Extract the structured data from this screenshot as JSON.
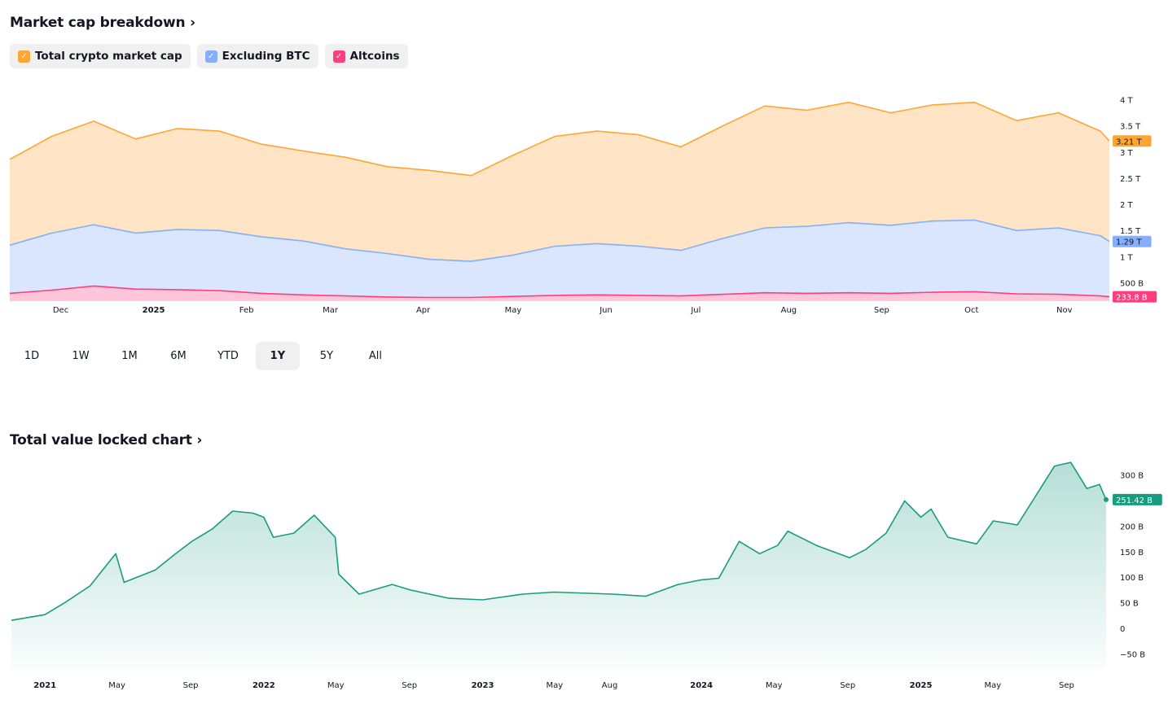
{
  "market": {
    "title": "Market cap breakdown",
    "legend": [
      {
        "label": "Total crypto market cap",
        "color": "#ffa534"
      },
      {
        "label": "Excluding BTC",
        "color": "#85aefc"
      },
      {
        "label": "Altcoins",
        "color": "#ff3d7f"
      }
    ]
  },
  "ranges": {
    "items": [
      "1D",
      "1W",
      "1M",
      "6M",
      "YTD",
      "1Y",
      "5Y",
      "All"
    ],
    "selected": "1Y"
  },
  "tvl": {
    "title": "Total value locked chart"
  },
  "chart_data": [
    {
      "type": "area",
      "title": "Market cap breakdown",
      "unit": "T",
      "ylim": [
        0.15,
        4.35
      ],
      "yticks": [
        {
          "label": "500 B",
          "v": 0.5
        },
        {
          "label": "1 T",
          "v": 1
        },
        {
          "label": "1.5 T",
          "v": 1.5
        },
        {
          "label": "2 T",
          "v": 2
        },
        {
          "label": "2.5 T",
          "v": 2.5
        },
        {
          "label": "3 T",
          "v": 3
        },
        {
          "label": "3.5 T",
          "v": 3.5
        },
        {
          "label": "4 T",
          "v": 4
        }
      ],
      "xlim": [
        "2024-11-14",
        "2025-11-16"
      ],
      "xticks": [
        {
          "label": "Dec",
          "d": "2024-12-01"
        },
        {
          "label": "2025",
          "d": "2025-01-01",
          "bold": true
        },
        {
          "label": "Feb",
          "d": "2025-02-01"
        },
        {
          "label": "Mar",
          "d": "2025-03-01"
        },
        {
          "label": "Apr",
          "d": "2025-04-01"
        },
        {
          "label": "May",
          "d": "2025-05-01"
        },
        {
          "label": "Jun",
          "d": "2025-06-01"
        },
        {
          "label": "Jul",
          "d": "2025-07-01"
        },
        {
          "label": "Aug",
          "d": "2025-08-01"
        },
        {
          "label": "Sep",
          "d": "2025-09-01"
        },
        {
          "label": "Oct",
          "d": "2025-10-01"
        },
        {
          "label": "Nov",
          "d": "2025-11-01"
        }
      ],
      "x": [
        "2024-11-14",
        "2024-11-28",
        "2024-12-12",
        "2024-12-26",
        "2025-01-09",
        "2025-01-23",
        "2025-02-06",
        "2025-02-20",
        "2025-03-06",
        "2025-03-20",
        "2025-04-03",
        "2025-04-17",
        "2025-05-01",
        "2025-05-15",
        "2025-05-29",
        "2025-06-12",
        "2025-06-26",
        "2025-07-10",
        "2025-07-24",
        "2025-08-07",
        "2025-08-21",
        "2025-09-04",
        "2025-09-18",
        "2025-10-02",
        "2025-10-16",
        "2025-10-30",
        "2025-11-13",
        "2025-11-16"
      ],
      "series": [
        {
          "name": "Total crypto market cap",
          "color": "#ffa534",
          "fill": "#ffe5c6",
          "last_label": "3.21 T",
          "values": [
            2.86,
            3.3,
            3.59,
            3.25,
            3.45,
            3.4,
            3.15,
            3.02,
            2.9,
            2.72,
            2.65,
            2.55,
            2.94,
            3.3,
            3.4,
            3.33,
            3.1,
            3.5,
            3.88,
            3.8,
            3.95,
            3.75,
            3.9,
            3.95,
            3.6,
            3.75,
            3.4,
            3.21
          ]
        },
        {
          "name": "Excluding BTC",
          "color": "#85aefc",
          "fill": "#d9e6fd",
          "last_label": "1.29 T",
          "values": [
            1.22,
            1.45,
            1.61,
            1.45,
            1.52,
            1.5,
            1.38,
            1.3,
            1.15,
            1.06,
            0.95,
            0.91,
            1.03,
            1.2,
            1.25,
            1.2,
            1.12,
            1.35,
            1.55,
            1.58,
            1.65,
            1.6,
            1.68,
            1.7,
            1.5,
            1.55,
            1.4,
            1.29
          ]
        },
        {
          "name": "Altcoins",
          "color": "#ff3d7f",
          "fill": "#ffc5d9",
          "last_label": "233.8 B",
          "values": [
            0.3,
            0.36,
            0.44,
            0.38,
            0.37,
            0.35,
            0.3,
            0.27,
            0.25,
            0.23,
            0.22,
            0.22,
            0.24,
            0.26,
            0.27,
            0.26,
            0.25,
            0.28,
            0.31,
            0.3,
            0.31,
            0.3,
            0.32,
            0.33,
            0.29,
            0.28,
            0.25,
            0.234
          ]
        }
      ]
    },
    {
      "type": "area",
      "title": "Total value locked chart",
      "unit": "B",
      "ylim": [
        -79,
        329
      ],
      "yticks": [
        {
          "label": "−50 B",
          "v": -50
        },
        {
          "label": "0",
          "v": 0
        },
        {
          "label": "50 B",
          "v": 50
        },
        {
          "label": "100 B",
          "v": 100
        },
        {
          "label": "150 B",
          "v": 150
        },
        {
          "label": "200 B",
          "v": 200
        },
        {
          "label": "300 B",
          "v": 300
        }
      ],
      "xlim": [
        "2020-11-06",
        "2025-11-06"
      ],
      "xticks": [
        {
          "label": "2021",
          "d": "2021-01-01",
          "bold": true
        },
        {
          "label": "May",
          "d": "2021-05-01"
        },
        {
          "label": "Sep",
          "d": "2021-09-01"
        },
        {
          "label": "2022",
          "d": "2022-01-01",
          "bold": true
        },
        {
          "label": "May",
          "d": "2022-05-01"
        },
        {
          "label": "Sep",
          "d": "2022-09-01"
        },
        {
          "label": "2023",
          "d": "2023-01-01",
          "bold": true
        },
        {
          "label": "May",
          "d": "2023-05-01"
        },
        {
          "label": "Aug",
          "d": "2023-08-01"
        },
        {
          "label": "2024",
          "d": "2024-01-01",
          "bold": true
        },
        {
          "label": "May",
          "d": "2024-05-01"
        },
        {
          "label": "Sep",
          "d": "2024-09-01"
        },
        {
          "label": "2025",
          "d": "2025-01-01",
          "bold": true
        },
        {
          "label": "May",
          "d": "2025-05-01"
        },
        {
          "label": "Sep",
          "d": "2025-09-01"
        }
      ],
      "x": [
        "2020-11-06",
        "2021-01-01",
        "2021-02-04",
        "2021-03-17",
        "2021-04-29",
        "2021-05-13",
        "2021-07-04",
        "2021-08-07",
        "2021-09-03",
        "2021-10-07",
        "2021-11-10",
        "2021-12-14",
        "2022-01-01",
        "2022-01-17",
        "2022-02-20",
        "2022-03-26",
        "2022-04-30",
        "2022-05-06",
        "2022-06-09",
        "2022-08-03",
        "2022-09-03",
        "2022-11-06",
        "2023-01-01",
        "2023-03-09",
        "2023-04-30",
        "2023-08-06",
        "2023-09-30",
        "2023-11-23",
        "2024-01-01",
        "2024-01-30",
        "2024-03-04",
        "2024-04-07",
        "2024-05-07",
        "2024-05-24",
        "2024-07-11",
        "2024-09-04",
        "2024-10-01",
        "2024-11-04",
        "2024-12-05",
        "2025-01-01",
        "2025-01-18",
        "2025-02-15",
        "2025-04-04",
        "2025-05-02",
        "2025-06-11",
        "2025-07-15",
        "2025-08-12",
        "2025-09-08",
        "2025-10-05",
        "2025-10-26",
        "2025-11-06"
      ],
      "series": [
        {
          "name": "Total value locked",
          "color": "#1a9b80",
          "fill": "#1a9b80",
          "last_label": "251.42 B",
          "values": [
            16,
            27,
            51,
            83,
            146,
            90,
            114,
            146,
            170,
            194,
            229,
            225,
            217,
            178,
            186,
            221,
            178,
            106,
            67,
            86,
            75,
            59,
            56,
            67,
            71,
            67,
            63,
            86,
            95,
            98,
            170,
            146,
            162,
            190,
            162,
            138,
            154,
            186,
            249,
            217,
            233,
            178,
            165,
            210,
            202,
            265,
            317,
            324,
            273,
            281,
            251.42
          ]
        }
      ]
    }
  ]
}
